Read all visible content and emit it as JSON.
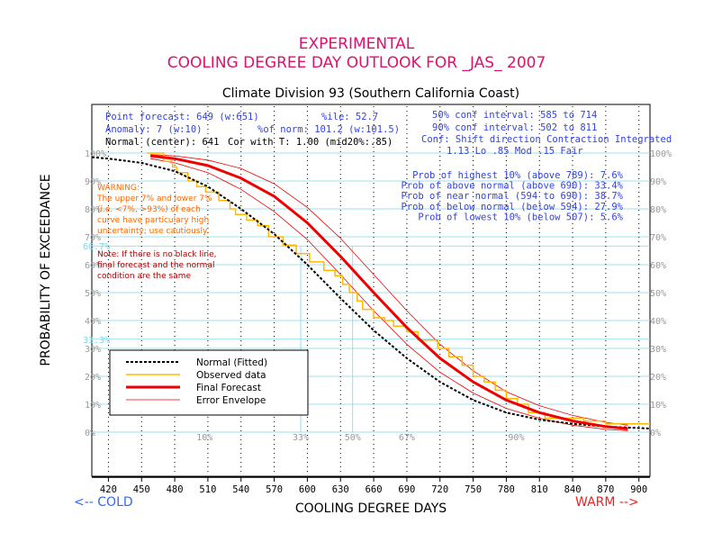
{
  "header": {
    "line1": "EXPERIMENTAL",
    "line2": "COOLING DEGREE DAY OUTLOOK FOR _JAS_ 2007",
    "subtitle": "Climate Division 93 (Southern California Coast)"
  },
  "stats": {
    "point_forecast": "Point forecast: 649 (w:651)",
    "anomaly": "Anomaly: 7 (w:10)",
    "normal": "Normal (center): 641",
    "pctile": "%ile: 52.7",
    "pct_norm": "%of norm: 101.2 (w:101.5)",
    "cor": "Cor with T: 1.00 (mid20%:.85)",
    "ci50": "50% conf interval: 585 to 714",
    "ci90": "90% conf interval: 502 to 811",
    "conf_header": "Conf: Shift direction   Contraction  Integrated",
    "conf_values": "1.13 Lo        .85 Mod    .15 Fair"
  },
  "probabilities": [
    "Prob of highest 10% (above 789): 7.6%",
    "Prob of above normal (above 690): 33.4%",
    "Prob of near normal (594 to 690): 38.7%",
    "Prob of below normal (below 594): 27.9%",
    "Prob of lowest 10% (below 507): 5.6%"
  ],
  "warning": [
    "WARNING:",
    "The upper 7% and lower 7%",
    "(i.e. <7%, >93%) of each",
    "curve have particulary high",
    "uncertainty; use cautiously."
  ],
  "note": [
    "Note: If there is no black line,",
    "final forecast and  the normal",
    "condition are the same"
  ],
  "footer": {
    "cold": "<-- COLD",
    "warm": "WARM -->",
    "xlabel": "COOLING DEGREE DAYS",
    "ylabel": "PROBABILITY OF EXCEEDANCE"
  },
  "colors": {
    "title": "#e0106e",
    "stats": "#3344dd",
    "grid": "#7fd6ea",
    "normal": "#000000",
    "observed": "#ffb800",
    "forecast": "#ee0000",
    "envelope": "#ee0000",
    "warning": "#ff6600",
    "note": "#aa0000",
    "cold": "#3366ff",
    "warm": "#ee2222"
  },
  "chart_data": {
    "type": "line",
    "xlabel": "COOLING DEGREE DAYS",
    "ylabel": "PROBABILITY OF EXCEEDANCE",
    "xlim": [
      405,
      910
    ],
    "ylim": [
      0,
      100
    ],
    "x_ticks": [
      420,
      450,
      480,
      510,
      540,
      570,
      600,
      630,
      660,
      690,
      720,
      750,
      780,
      810,
      840,
      870,
      900
    ],
    "y_ticks_left": [
      "0%",
      "10%",
      "20%",
      "30%",
      "40%",
      "50%",
      "60%",
      "70%",
      "80%",
      "90%",
      "100%"
    ],
    "y_ticks_right": [
      "0%",
      "10%",
      "20%",
      "30%",
      "40%",
      "50%",
      "60%",
      "70%",
      "80%",
      "90%",
      "100%"
    ],
    "special_y": [
      {
        "label": "66.7%",
        "value": 66.7
      },
      {
        "label": "33.3%",
        "value": 33.3
      }
    ],
    "percentile_markers": [
      {
        "label": "10%",
        "x": 507
      },
      {
        "label": "33%",
        "x": 594
      },
      {
        "label": "50%",
        "x": 641
      },
      {
        "label": "67%",
        "x": 690
      },
      {
        "label": "90%",
        "x": 789
      }
    ],
    "legend": [
      {
        "label": "Normal (Fitted)",
        "key": "normal",
        "style": "dashed"
      },
      {
        "label": "Observed data",
        "key": "observed",
        "style": "solid"
      },
      {
        "label": "Final Forecast",
        "key": "forecast",
        "style": "thick"
      },
      {
        "label": "Error Envelope",
        "key": "envelope",
        "style": "thin"
      }
    ],
    "series": [
      {
        "name": "Normal (Fitted)",
        "x": [
          405,
          420,
          450,
          480,
          510,
          540,
          570,
          600,
          630,
          660,
          690,
          720,
          750,
          780,
          810,
          840,
          870,
          900,
          910
        ],
        "y": [
          98.5,
          98.0,
          96.5,
          93.5,
          88.0,
          80.0,
          71.0,
          60.0,
          48.0,
          36.5,
          26.5,
          18.0,
          11.5,
          7.0,
          4.5,
          3.0,
          2.0,
          1.5,
          1.3
        ]
      },
      {
        "name": "Observed data",
        "x": [
          455,
          470,
          478,
          482,
          492,
          500,
          508,
          520,
          530,
          535,
          545,
          555,
          565,
          578,
          590,
          602,
          615,
          625,
          632,
          638,
          645,
          650,
          660,
          670,
          678,
          690,
          700,
          718,
          728,
          740,
          750,
          760,
          770,
          780,
          790,
          800,
          815,
          850,
          870,
          910
        ],
        "y": [
          100,
          97,
          95,
          93,
          90,
          88,
          86,
          83,
          80,
          78,
          76,
          74,
          70,
          67,
          64,
          61,
          58,
          56,
          53,
          50,
          47,
          44,
          41,
          40,
          38,
          36,
          33,
          30,
          27,
          24,
          20,
          18,
          15,
          12,
          10,
          7,
          5,
          4,
          3,
          3
        ]
      },
      {
        "name": "Final Forecast",
        "x": [
          458,
          480,
          510,
          540,
          570,
          600,
          630,
          660,
          690,
          720,
          750,
          780,
          810,
          840,
          870,
          890
        ],
        "y": [
          99.0,
          98.0,
          95.5,
          91.0,
          84.5,
          75.0,
          63.0,
          50.0,
          37.5,
          26.5,
          18.0,
          11.5,
          7.0,
          4.0,
          2.0,
          1.2
        ]
      },
      {
        "name": "Error Envelope Upper",
        "x": [
          458,
          480,
          510,
          540,
          570,
          600,
          630,
          660,
          690,
          720,
          750,
          780,
          810,
          840,
          870,
          890
        ],
        "y": [
          99.5,
          99.0,
          97.5,
          94.5,
          89.0,
          80.5,
          69.5,
          56.5,
          43.5,
          31.5,
          22.0,
          14.5,
          9.5,
          6.0,
          3.5,
          2.5
        ]
      },
      {
        "name": "Error Envelope Lower",
        "x": [
          458,
          480,
          510,
          540,
          570,
          600,
          630,
          660,
          690,
          720,
          750,
          780,
          810,
          840,
          870,
          890
        ],
        "y": [
          98.0,
          96.5,
          93.0,
          87.0,
          79.0,
          69.0,
          56.5,
          43.5,
          31.5,
          21.5,
          14.0,
          8.5,
          5.0,
          2.5,
          1.0,
          0.5
        ]
      }
    ]
  }
}
